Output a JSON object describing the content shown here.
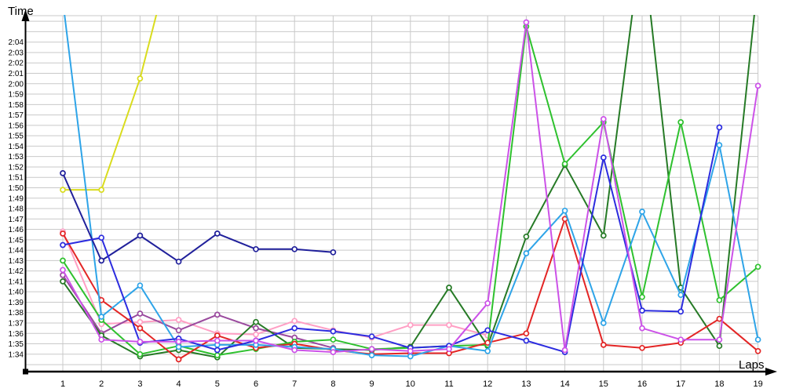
{
  "chart_data": {
    "type": "line",
    "title": "",
    "xlabel": "Laps",
    "ylabel": "Time",
    "grid": true,
    "legend": "none",
    "x_range": [
      1,
      19
    ],
    "y_range": [
      "1:33",
      "2:06"
    ],
    "x_ticks": [
      "1",
      "2",
      "3",
      "4",
      "5",
      "6",
      "7",
      "8",
      "9",
      "10",
      "11",
      "12",
      "13",
      "14",
      "15",
      "16",
      "17",
      "18",
      "19"
    ],
    "y_ticks": [
      "1:34",
      "1:35",
      "1:36",
      "1:37",
      "1:38",
      "1:39",
      "1:40",
      "1:41",
      "1:42",
      "1:43",
      "1:44",
      "1:45",
      "1:46",
      "1:47",
      "1:48",
      "1:49",
      "1:50",
      "1:51",
      "1:52",
      "1:53",
      "1:54",
      "1:55",
      "1:56",
      "1:57",
      "1:58",
      "1:59",
      "2:00",
      "2:01",
      "2:02",
      "2:03",
      "2:04"
    ],
    "y_unit": "minutes:seconds (lap time)",
    "marker": "open-circle",
    "series": [
      {
        "name": "yellow",
        "color": "#d9dc1e",
        "values_seconds": [
          109.8,
          109.8,
          120.5,
          135
        ]
      },
      {
        "name": "pink",
        "color": "#ff9fc4",
        "values_seconds": [
          105.8,
          96.9,
          97.1,
          97.3,
          96.0,
          95.9,
          97.2,
          96.3,
          95.6,
          96.8,
          96.8,
          95.8
        ]
      },
      {
        "name": "purple",
        "color": "#9a4a9e",
        "values_seconds": [
          101.6,
          96.0,
          97.9,
          96.3,
          97.8,
          96.5,
          95.6,
          94.6
        ]
      },
      {
        "name": "dark-green",
        "color": "#267a26",
        "values_seconds": [
          101.0,
          95.8,
          93.8,
          94.4,
          93.7,
          97.1,
          94.6,
          94.5,
          94.4,
          94.7,
          100.4,
          94.8,
          105.3,
          112.2,
          105.4,
          134.0,
          100.4,
          94.8,
          130.0
        ]
      },
      {
        "name": "green",
        "color": "#2ec12e",
        "values_seconds": [
          103.0,
          97.3,
          94.0,
          94.8,
          93.9,
          94.5,
          95.2,
          95.4,
          94.5,
          94.6,
          94.8,
          94.9,
          125.5,
          112.3,
          116.3,
          99.5,
          116.3,
          99.2,
          102.4
        ]
      },
      {
        "name": "red",
        "color": "#e32525",
        "values_seconds": [
          105.6,
          99.2,
          96.5,
          93.5,
          95.8,
          94.6,
          95.0,
          94.4,
          94.0,
          94.1,
          94.1,
          95.1,
          96.0,
          107.0,
          94.9,
          94.6,
          95.1,
          97.4,
          94.3
        ]
      },
      {
        "name": "sky-blue",
        "color": "#2ea4e8",
        "values_seconds": [
          128.0,
          97.6,
          100.6,
          94.7,
          94.9,
          94.9,
          94.7,
          94.5,
          93.9,
          93.8,
          94.8,
          94.3,
          103.7,
          107.8,
          97.0,
          107.7,
          99.7,
          114.1,
          95.4
        ]
      },
      {
        "name": "navy",
        "color": "#20209b",
        "values_seconds": [
          111.4,
          103.0,
          105.4,
          102.9,
          105.6,
          104.1,
          104.1,
          103.8
        ]
      },
      {
        "name": "blue",
        "color": "#2c2cdf",
        "values_seconds": [
          104.5,
          105.2,
          95.1,
          95.5,
          94.4,
          95.3,
          96.5,
          96.2,
          95.7,
          94.6,
          94.8,
          96.3,
          95.3,
          94.2,
          112.9,
          98.2,
          98.1,
          115.8
        ]
      },
      {
        "name": "magenta",
        "color": "#cc52e8",
        "values_seconds": [
          102.1,
          95.4,
          95.2,
          95.2,
          95.3,
          95.3,
          94.4,
          94.2,
          94.5,
          94.3,
          94.5,
          98.9,
          125.9,
          94.4,
          116.6,
          96.5,
          95.4,
          95.4,
          119.8
        ]
      }
    ]
  }
}
